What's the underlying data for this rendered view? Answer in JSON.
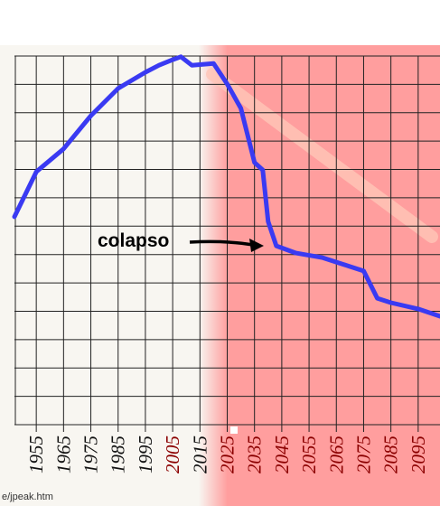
{
  "chart_data": {
    "type": "line",
    "annotation": "colapso",
    "source": "e/jpeak.htm",
    "series": [
      {
        "color": "#3a3af2",
        "x": [
          1947,
          1955,
          1965,
          1975,
          1985,
          1995,
          2000,
          2005,
          2008,
          2012,
          2020,
          2025,
          2030,
          2035,
          2038,
          2040,
          2043,
          2050,
          2060,
          2070,
          2075,
          2080,
          2085,
          2095,
          2103
        ],
        "values": [
          56.4,
          68.6,
          74.8,
          83.8,
          91.2,
          95.6,
          97.5,
          99.0,
          99.8,
          97.5,
          98.0,
          92.4,
          85.8,
          71.1,
          69.1,
          55.1,
          48.5,
          46.6,
          45.3,
          42.9,
          41.7,
          34.3,
          33.1,
          31.4,
          29.4
        ]
      }
    ],
    "xlim": [
      1947,
      2103
    ],
    "ylim": [
      0,
      100
    ],
    "xticks": [
      1955,
      1965,
      1975,
      1985,
      1995,
      2005,
      2015,
      2025,
      2035,
      2045,
      2055,
      2065,
      2075,
      2085,
      2095
    ],
    "xtick_colors": [
      "#111111",
      "#111111",
      "#111111",
      "#111111",
      "#111111",
      "#8b0000",
      "#111111",
      "#8b0000",
      "#8b0000",
      "#8b0000",
      "#8b0000",
      "#8b0000",
      "#8b0000",
      "#8b0000",
      "#8b0000"
    ],
    "grid": true
  }
}
